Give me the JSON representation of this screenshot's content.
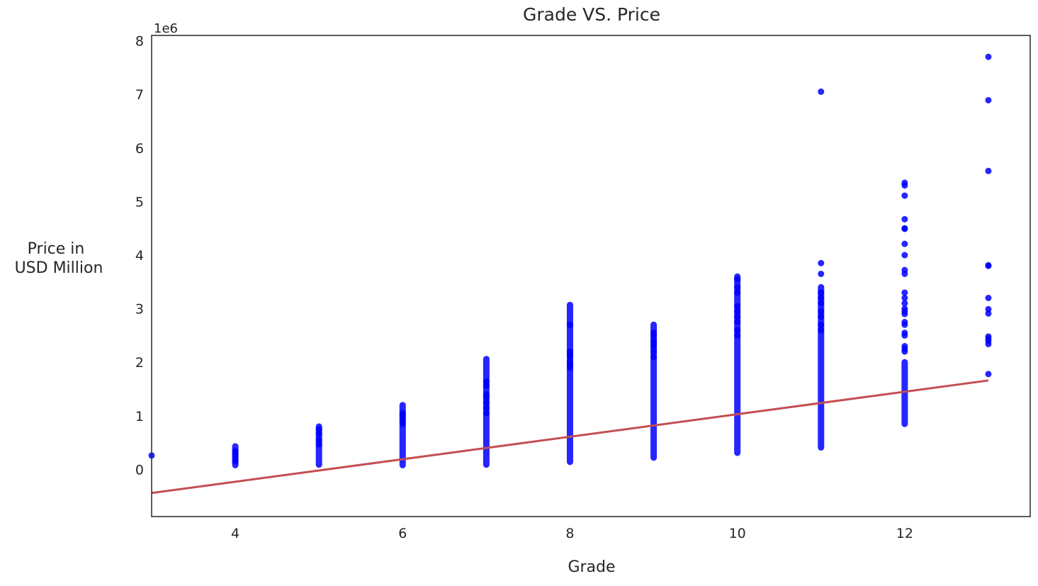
{
  "chart_data": {
    "type": "scatter",
    "title": "Grade VS. Price",
    "xlabel": "Grade",
    "ylabel_lines": [
      "Price in",
      "USD Million"
    ],
    "y_offset_text": "1e6",
    "xlim": [
      3,
      13.5
    ],
    "ylim": [
      -0.88,
      8.1
    ],
    "x_ticks": [
      4,
      6,
      8,
      10,
      12
    ],
    "x_tick_labels": [
      "4",
      "6",
      "8",
      "10",
      "12"
    ],
    "y_ticks": [
      0,
      1,
      2,
      3,
      4,
      5,
      6,
      7,
      8
    ],
    "y_tick_labels": [
      "0",
      "1",
      "2",
      "3",
      "4",
      "5",
      "6",
      "7",
      "8"
    ],
    "grid": false,
    "series": [
      {
        "kind": "scatter",
        "color": "#0000ff",
        "groups": [
          {
            "x": 3,
            "min": 0.26,
            "max": 0.26,
            "extra": []
          },
          {
            "x": 4,
            "min": 0.08,
            "max": 0.43,
            "extra": [
              0.34,
              0.28,
              0.22,
              0.15
            ]
          },
          {
            "x": 5,
            "min": 0.09,
            "max": 0.8,
            "extra": [
              0.75,
              0.67,
              0.55,
              0.47
            ]
          },
          {
            "x": 6,
            "min": 0.08,
            "max": 1.2,
            "extra": [
              1.05,
              1.0,
              0.95,
              0.9,
              0.85
            ]
          },
          {
            "x": 7,
            "min": 0.09,
            "max": 2.06,
            "extra": [
              1.64,
              1.56,
              1.4,
              1.35,
              1.25,
              1.15,
              1.05
            ]
          },
          {
            "x": 8,
            "min": 0.14,
            "max": 3.07,
            "extra": [
              2.7,
              2.2,
              2.15,
              2.1,
              2.0,
              1.95,
              1.9
            ]
          },
          {
            "x": 9,
            "min": 0.22,
            "max": 2.7,
            "extra": [
              2.55,
              2.5,
              2.4,
              2.35,
              2.3,
              2.2,
              2.1
            ]
          },
          {
            "x": 10,
            "min": 0.31,
            "max": 3.6,
            "extra": [
              3.55,
              3.4,
              3.3,
              3.05,
              2.95,
              2.85,
              2.75,
              2.6,
              2.5
            ]
          },
          {
            "x": 11,
            "min": 0.41,
            "max": 3.4,
            "extra": [
              7.05,
              3.85,
              3.65,
              3.3,
              3.2,
              3.1,
              2.95,
              2.85,
              2.7,
              2.6
            ]
          },
          {
            "x": 12,
            "min": 0.85,
            "max": 2.0,
            "extra": [
              5.35,
              5.3,
              5.11,
              4.67,
              4.5,
              4.49,
              4.21,
              4.0,
              3.72,
              3.65,
              3.3,
              3.2,
              3.1,
              3.0,
              2.95,
              2.9,
              2.75,
              2.7,
              2.55,
              2.5,
              2.3,
              2.25,
              2.2
            ]
          },
          {
            "x": 13,
            "min": 1.78,
            "max": 1.78,
            "extra": [
              7.7,
              6.89,
              5.57,
              3.8,
              3.81,
              3.2,
              2.99,
              2.91,
              2.48,
              2.44,
              2.4,
              2.34
            ]
          }
        ]
      },
      {
        "kind": "regression-line",
        "color": "#c44e52",
        "x": [
          3,
          13
        ],
        "y": [
          -0.44,
          1.66
        ]
      }
    ]
  }
}
